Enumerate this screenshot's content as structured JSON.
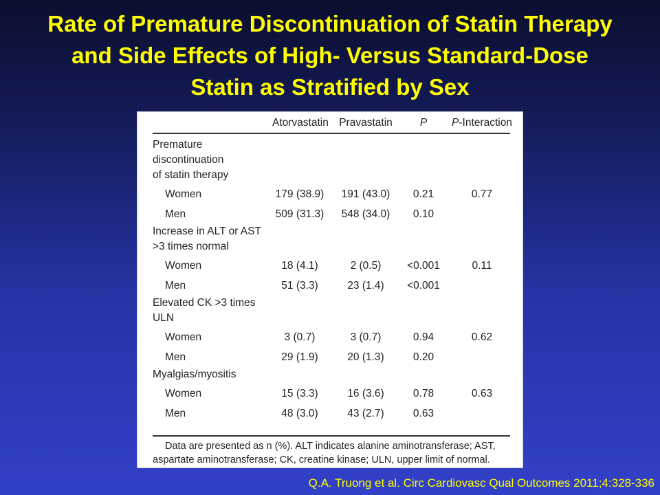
{
  "title": {
    "line1": "Rate of Premature Discontinuation of Statin Therapy",
    "line2": "and Side Effects of High- Versus Standard-Dose",
    "line3": "Statin as Stratified by Sex"
  },
  "table": {
    "headers": {
      "col1": "Atorvastatin",
      "col2": "Pravastatin",
      "col3": "P",
      "col4_italic": "P",
      "col4_rest": "-Interaction"
    },
    "sections": [
      {
        "label_lines": [
          "Premature",
          "discontinuation",
          "of statin therapy"
        ],
        "rows": [
          {
            "group": "Women",
            "atorvastatin": "179 (38.9)",
            "pravastatin": "191 (43.0)",
            "p": "0.21",
            "p_interaction": "0.77"
          },
          {
            "group": "Men",
            "atorvastatin": "509 (31.3)",
            "pravastatin": "548 (34.0)",
            "p": "0.10",
            "p_interaction": ""
          }
        ]
      },
      {
        "label_lines": [
          "Increase in ALT or AST",
          ">3 times normal"
        ],
        "rows": [
          {
            "group": "Women",
            "atorvastatin": "18 (4.1)",
            "pravastatin": "2 (0.5)",
            "p": "<0.001",
            "p_interaction": "0.11"
          },
          {
            "group": "Men",
            "atorvastatin": "51 (3.3)",
            "pravastatin": "23 (1.4)",
            "p": "<0.001",
            "p_interaction": ""
          }
        ]
      },
      {
        "label_lines": [
          "Elevated CK >3 times",
          "ULN"
        ],
        "rows": [
          {
            "group": "Women",
            "atorvastatin": "3 (0.7)",
            "pravastatin": "3 (0.7)",
            "p": "0.94",
            "p_interaction": "0.62"
          },
          {
            "group": "Men",
            "atorvastatin": "29 (1.9)",
            "pravastatin": "20 (1.3)",
            "p": "0.20",
            "p_interaction": ""
          }
        ]
      },
      {
        "label_lines": [
          "Myalgias/myositis"
        ],
        "rows": [
          {
            "group": "Women",
            "atorvastatin": "15 (3.3)",
            "pravastatin": "16 (3.6)",
            "p": "0.78",
            "p_interaction": "0.63"
          },
          {
            "group": "Men",
            "atorvastatin": "48 (3.0)",
            "pravastatin": "43 (2.7)",
            "p": "0.63",
            "p_interaction": ""
          }
        ]
      }
    ],
    "note_line1": "Data are presented as n (%). ALT indicates alanine aminotransferase; AST,",
    "note_line2": "aspartate aminotransferase; CK, creatine kinase; ULN, upper limit of normal."
  },
  "citation": "Q.A. Truong et al. Circ Cardiovasc Qual Outcomes 2011;4:328-336",
  "colors": {
    "title": "#ffff00",
    "background_top": "#0b0e2e",
    "background_bottom": "#3140c8",
    "panel": "#ffffff"
  }
}
